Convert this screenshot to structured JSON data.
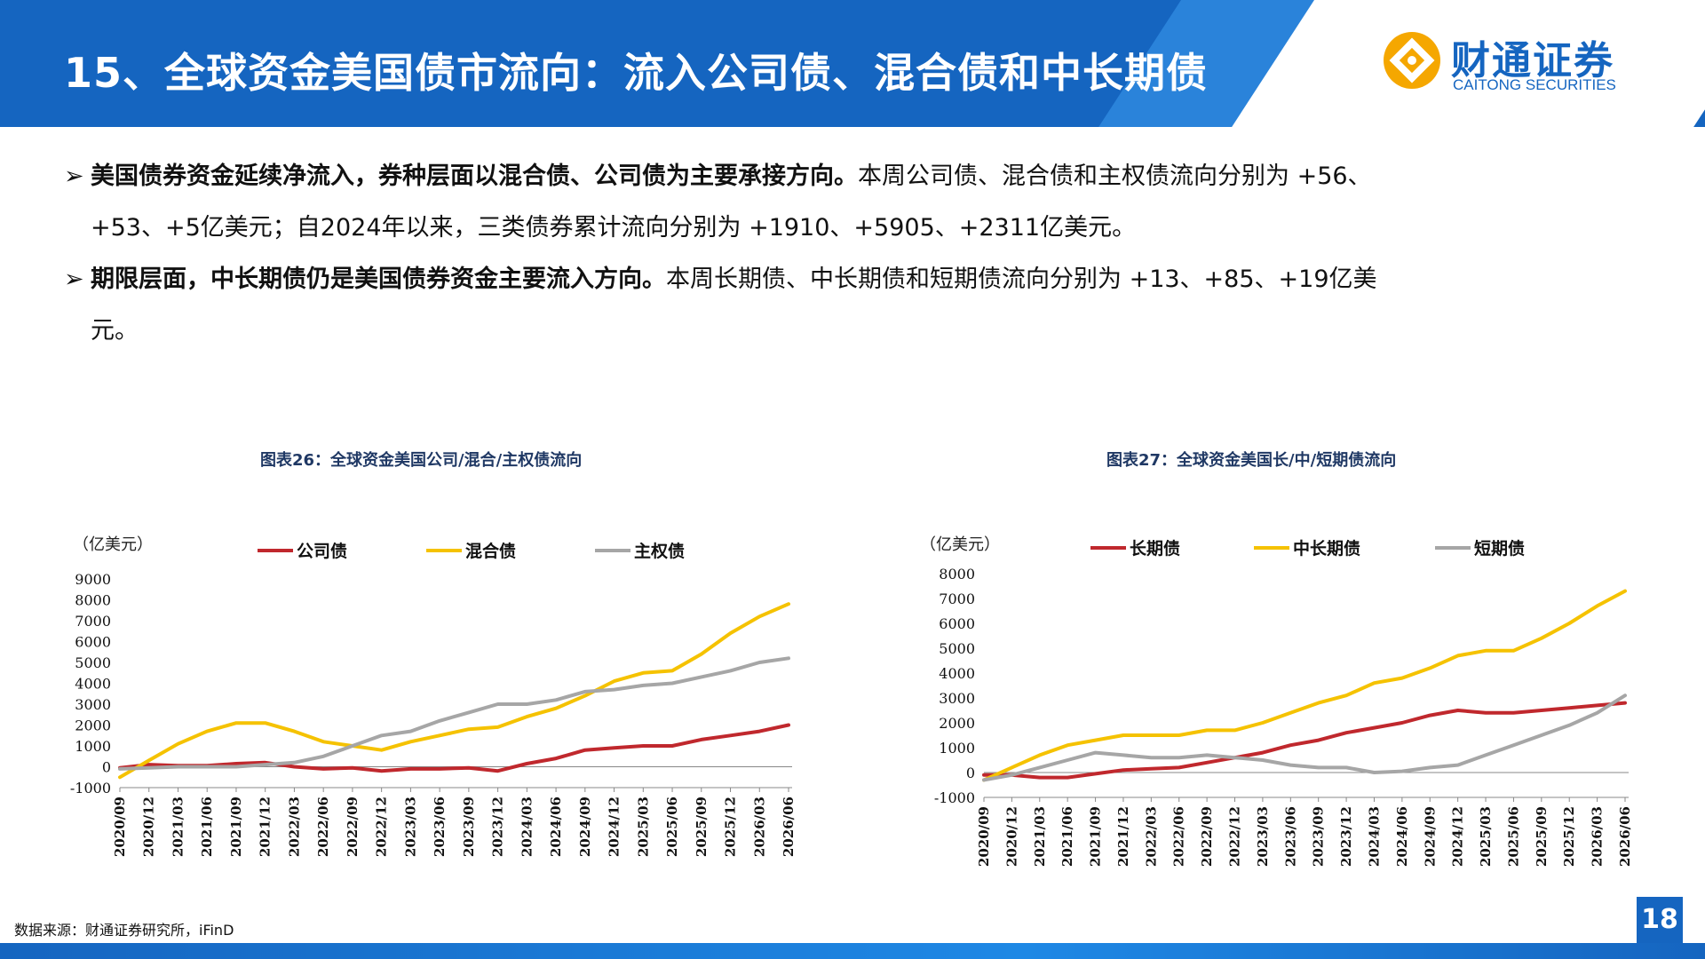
{
  "header": {
    "title": "15、全球资金美国债市流向：流入公司债、混合债和中长期债",
    "logo_name": "财通证券",
    "logo_sub": "CAITONG SECURITIES",
    "logo_icon": "caitong-logo-icon"
  },
  "bullets": [
    {
      "marker": "➢",
      "lead": "美国债券资金延续净流入，券种层面以混合债、公司债为主要承接方向。",
      "text": "本周公司债、混合债和主权债流向分别为 +56、",
      "cont": "+53、+5亿美元；自2024年以来，三类债券累计流向分别为 +1910、+5905、+2311亿美元。"
    },
    {
      "marker": "➢",
      "lead": "期限层面，中长期债仍是美国债券资金主要流入方向。",
      "text": "本周长期债、中长期债和短期债流向分别为 +13、+85、+19亿美",
      "cont": "元。"
    }
  ],
  "source": "数据来源：财通证券研究所，iFinD",
  "page_number": "18",
  "colors": {
    "primary": "#1565c0",
    "red": "#c0282d",
    "yellow": "#f5c200",
    "gray": "#a6a6a6"
  },
  "chart_data": [
    {
      "type": "line",
      "title": "图表26：全球资金美国公司/混合/主权债流向",
      "ylabel": "（亿美元）",
      "ylim": [
        -1000,
        9000
      ],
      "yticks": [
        -1000,
        0,
        1000,
        2000,
        3000,
        4000,
        5000,
        6000,
        7000,
        8000,
        9000
      ],
      "xticks": [
        "2020/09",
        "2020/12",
        "2021/03",
        "2021/06",
        "2021/09",
        "2021/12",
        "2022/03",
        "2022/06",
        "2022/09",
        "2022/12",
        "2023/03",
        "2023/06",
        "2023/09",
        "2023/12",
        "2024/03",
        "2024/06",
        "2024/09",
        "2024/12",
        "2025/03",
        "2025/06",
        "2025/09",
        "2025/12",
        "2026/03",
        "2026/06"
      ],
      "x_period_index": [
        0,
        3,
        6,
        9,
        12,
        15,
        18,
        21,
        24,
        27,
        30,
        33,
        36,
        39,
        42,
        45,
        48,
        51,
        54,
        57,
        60,
        63,
        66,
        69
      ],
      "grid": false,
      "legend_position": "top",
      "series": [
        {
          "name": "公司债",
          "color": "#c0282d",
          "x": [
            0,
            3,
            6,
            9,
            12,
            15,
            18,
            21,
            24,
            27,
            30,
            33,
            36,
            39,
            42,
            45,
            48,
            51,
            54,
            57,
            60,
            63,
            66,
            69
          ],
          "y": [
            -50,
            100,
            50,
            50,
            150,
            200,
            0,
            -100,
            -50,
            -200,
            -100,
            -100,
            -50,
            -200,
            150,
            400,
            800,
            900,
            1000,
            1000,
            1300,
            1500,
            1700,
            2000
          ]
        },
        {
          "name": "混合债",
          "color": "#f5c200",
          "x": [
            0,
            3,
            6,
            9,
            12,
            15,
            18,
            21,
            24,
            27,
            30,
            33,
            36,
            39,
            42,
            45,
            48,
            51,
            54,
            57,
            60,
            63,
            66,
            69
          ],
          "y": [
            -500,
            300,
            1100,
            1700,
            2100,
            2100,
            1700,
            1200,
            1000,
            800,
            1200,
            1500,
            1800,
            1900,
            2400,
            2800,
            3400,
            4100,
            4500,
            4600,
            5400,
            6400,
            7200,
            7800
          ]
        },
        {
          "name": "主权债",
          "color": "#a6a6a6",
          "x": [
            0,
            3,
            6,
            9,
            12,
            15,
            18,
            21,
            24,
            27,
            30,
            33,
            36,
            39,
            42,
            45,
            48,
            51,
            54,
            57,
            60,
            63,
            66,
            69
          ],
          "y": [
            -100,
            -50,
            0,
            0,
            0,
            100,
            200,
            500,
            1000,
            1500,
            1700,
            2200,
            2600,
            3000,
            3000,
            3200,
            3600,
            3700,
            3900,
            4000,
            4300,
            4600,
            5000,
            5200
          ]
        }
      ]
    },
    {
      "type": "line",
      "title": "图表27：全球资金美国长/中/短期债流向",
      "ylabel": "（亿美元）",
      "ylim": [
        -1000,
        8000
      ],
      "yticks": [
        -1000,
        0,
        1000,
        2000,
        3000,
        4000,
        5000,
        6000,
        7000,
        8000
      ],
      "xticks": [
        "2020/09",
        "2020/12",
        "2021/03",
        "2021/06",
        "2021/09",
        "2021/12",
        "2022/03",
        "2022/06",
        "2022/09",
        "2022/12",
        "2023/03",
        "2023/06",
        "2023/09",
        "2023/12",
        "2024/03",
        "2024/06",
        "2024/09",
        "2024/12",
        "2025/03",
        "2025/06",
        "2025/09",
        "2025/12",
        "2026/03",
        "2026/06"
      ],
      "x_period_index": [
        0,
        3,
        6,
        9,
        12,
        15,
        18,
        21,
        24,
        27,
        30,
        33,
        36,
        39,
        42,
        45,
        48,
        51,
        54,
        57,
        60,
        63,
        66,
        69
      ],
      "grid": false,
      "legend_position": "top",
      "series": [
        {
          "name": "长期债",
          "color": "#c0282d",
          "x": [
            0,
            3,
            6,
            9,
            12,
            15,
            18,
            21,
            24,
            27,
            30,
            33,
            36,
            39,
            42,
            45,
            48,
            51,
            54,
            57,
            60,
            63,
            66,
            69
          ],
          "y": [
            -100,
            -100,
            -200,
            -200,
            -50,
            100,
            150,
            200,
            400,
            600,
            800,
            1100,
            1300,
            1600,
            1800,
            2000,
            2300,
            2500,
            2400,
            2400,
            2500,
            2600,
            2700,
            2800
          ]
        },
        {
          "name": "中长期债",
          "color": "#f5c200",
          "x": [
            0,
            3,
            6,
            9,
            12,
            15,
            18,
            21,
            24,
            27,
            30,
            33,
            36,
            39,
            42,
            45,
            48,
            51,
            54,
            57,
            60,
            63,
            66,
            69
          ],
          "y": [
            -300,
            200,
            700,
            1100,
            1300,
            1500,
            1500,
            1500,
            1700,
            1700,
            2000,
            2400,
            2800,
            3100,
            3600,
            3800,
            4200,
            4700,
            4900,
            4900,
            5400,
            6000,
            6700,
            7300
          ]
        },
        {
          "name": "短期债",
          "color": "#a6a6a6",
          "x": [
            0,
            3,
            6,
            9,
            12,
            15,
            18,
            21,
            24,
            27,
            30,
            33,
            36,
            39,
            42,
            45,
            48,
            51,
            54,
            57,
            60,
            63,
            66,
            69
          ],
          "y": [
            -300,
            -100,
            200,
            500,
            800,
            700,
            600,
            600,
            700,
            600,
            500,
            300,
            200,
            200,
            0,
            50,
            200,
            300,
            700,
            1100,
            1500,
            1900,
            2400,
            3100
          ]
        }
      ]
    }
  ]
}
